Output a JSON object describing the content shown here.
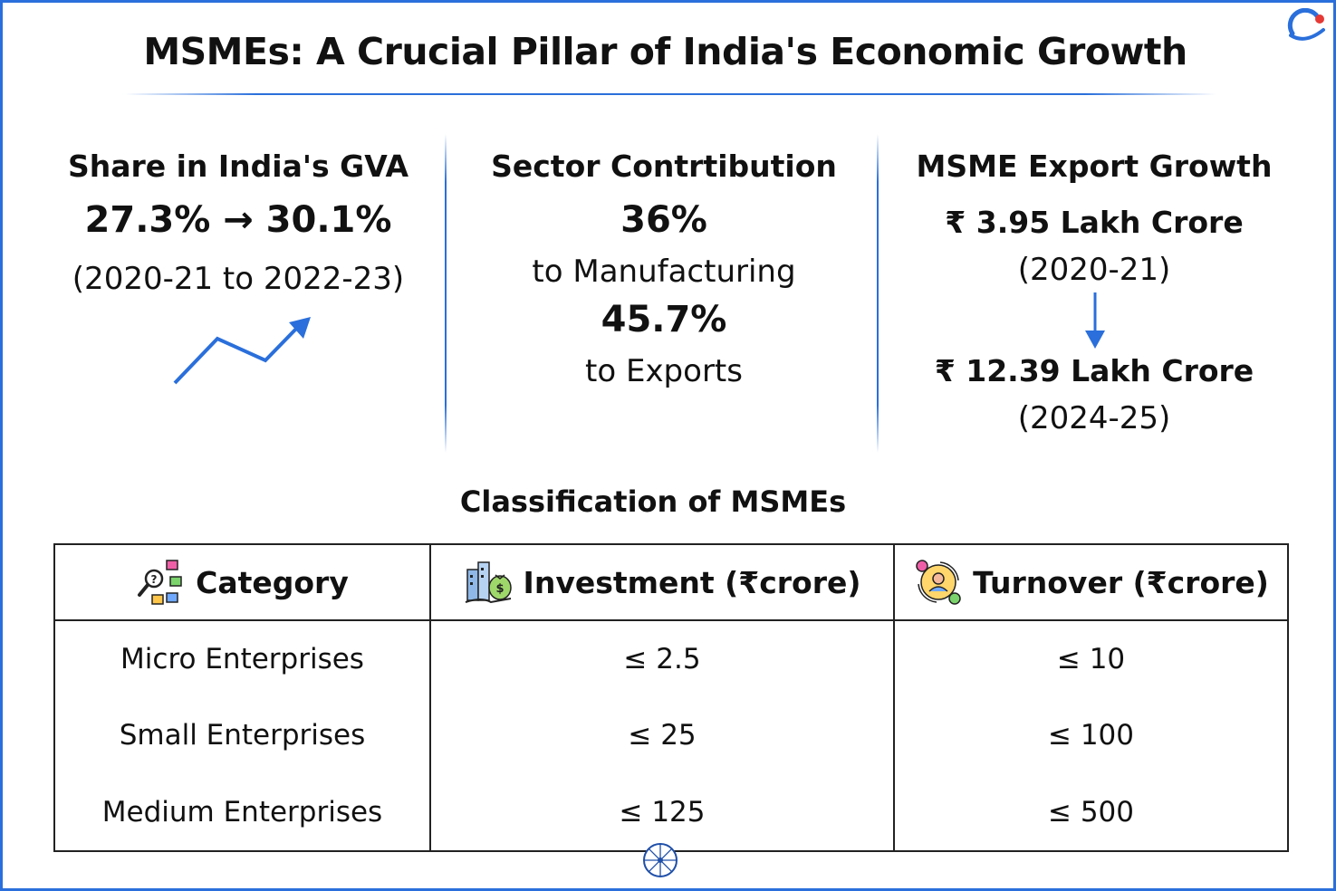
{
  "title": "MSMEs: A Crucial Pillar of India's Economic Growth",
  "colors": {
    "accent": "#2a6fdb",
    "logo_red": "#e53935",
    "text": "#111111"
  },
  "gva": {
    "heading": "Share in India's GVA",
    "value": "27.3% → 30.1%",
    "period": "(2020-21 to 2022-23)",
    "icon": "trend-up-arrow-icon"
  },
  "sector": {
    "heading": "Sector Contrtibution",
    "manufacturing_value": "36%",
    "manufacturing_label": "to Manufacturing",
    "exports_value": "45.7%",
    "exports_label": "to Exports"
  },
  "exports": {
    "heading": "MSME Export Growth",
    "from_value": "₹ 3.95 Lakh Crore",
    "from_period": "(2020-21)",
    "to_value": "₹ 12.39 Lakh Crore",
    "to_period": "(2024-25)",
    "icon": "arrow-down-icon"
  },
  "classification": {
    "title": "Classification of MSMEs",
    "headers": [
      {
        "label": "Category",
        "icon": "category-chart-icon"
      },
      {
        "label": "Investment (₹crore)",
        "icon": "investment-building-moneybag-icon"
      },
      {
        "label": "Turnover (₹crore)",
        "icon": "turnover-cycle-people-icon"
      }
    ],
    "rows": [
      {
        "category": "Micro Enterprises",
        "investment": "≤ 2.5",
        "turnover": "≤ 10"
      },
      {
        "category": "Small Enterprises",
        "investment": "≤ 25",
        "turnover": "≤ 100"
      },
      {
        "category": "Medium Enterprises",
        "investment": "≤ 125",
        "turnover": "≤ 500"
      }
    ]
  },
  "footer_icon": "ashoka-chakra-wheel-icon"
}
